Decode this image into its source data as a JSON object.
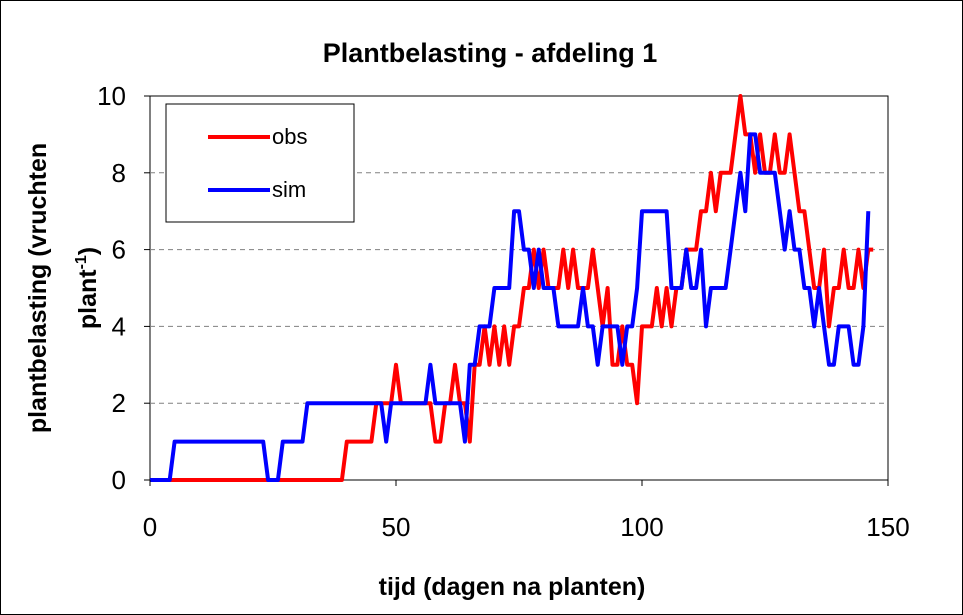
{
  "chart_data": {
    "type": "line",
    "title": "Plantbelasting - afdeling 1",
    "xlabel": "tijd (dagen na planten)",
    "ylabel_line1": "plantbelasting (vruchten",
    "ylabel_line2": "plant",
    "ylabel_sup": "-1",
    "ylabel_close": ")",
    "xlim": [
      0,
      150
    ],
    "ylim": [
      0,
      10
    ],
    "xticks": [
      0,
      50,
      100,
      150
    ],
    "yticks": [
      0,
      2,
      4,
      6,
      8,
      10
    ],
    "grid": "horizontal dashed",
    "legend_position": "top-left",
    "series": [
      {
        "name": "obs",
        "color": "#ff0000",
        "points": [
          [
            0,
            0
          ],
          [
            39,
            0
          ],
          [
            40,
            1
          ],
          [
            43,
            1
          ],
          [
            44,
            1
          ],
          [
            45,
            1
          ],
          [
            46,
            2
          ],
          [
            48,
            2
          ],
          [
            49,
            2
          ],
          [
            50,
            3
          ],
          [
            51,
            2
          ],
          [
            53,
            2
          ],
          [
            55,
            2
          ],
          [
            57,
            2
          ],
          [
            58,
            1
          ],
          [
            59,
            1
          ],
          [
            60,
            2
          ],
          [
            61,
            2
          ],
          [
            62,
            3
          ],
          [
            63,
            2
          ],
          [
            64,
            2
          ],
          [
            65,
            1
          ],
          [
            66,
            3
          ],
          [
            67,
            3
          ],
          [
            68,
            4
          ],
          [
            69,
            3
          ],
          [
            70,
            4
          ],
          [
            71,
            3
          ],
          [
            72,
            4
          ],
          [
            73,
            3
          ],
          [
            74,
            4
          ],
          [
            75,
            4
          ],
          [
            76,
            5
          ],
          [
            77,
            5
          ],
          [
            78,
            6
          ],
          [
            79,
            5
          ],
          [
            80,
            6
          ],
          [
            81,
            5
          ],
          [
            82,
            5
          ],
          [
            83,
            5
          ],
          [
            84,
            6
          ],
          [
            85,
            5
          ],
          [
            86,
            6
          ],
          [
            87,
            5
          ],
          [
            88,
            5
          ],
          [
            89,
            5
          ],
          [
            90,
            6
          ],
          [
            91,
            5
          ],
          [
            92,
            4
          ],
          [
            93,
            5
          ],
          [
            94,
            3
          ],
          [
            95,
            3
          ],
          [
            96,
            4
          ],
          [
            97,
            3
          ],
          [
            98,
            3
          ],
          [
            99,
            2
          ],
          [
            100,
            4
          ],
          [
            101,
            4
          ],
          [
            102,
            4
          ],
          [
            103,
            5
          ],
          [
            104,
            4
          ],
          [
            105,
            5
          ],
          [
            106,
            4
          ],
          [
            107,
            5
          ],
          [
            108,
            5
          ],
          [
            109,
            6
          ],
          [
            110,
            6
          ],
          [
            111,
            6
          ],
          [
            112,
            7
          ],
          [
            113,
            7
          ],
          [
            114,
            8
          ],
          [
            115,
            7
          ],
          [
            116,
            8
          ],
          [
            117,
            8
          ],
          [
            118,
            8
          ],
          [
            119,
            9
          ],
          [
            120,
            10
          ],
          [
            121,
            9
          ],
          [
            122,
            9
          ],
          [
            123,
            8
          ],
          [
            124,
            9
          ],
          [
            125,
            8
          ],
          [
            126,
            8
          ],
          [
            127,
            9
          ],
          [
            128,
            8
          ],
          [
            129,
            8
          ],
          [
            130,
            9
          ],
          [
            131,
            8
          ],
          [
            132,
            7
          ],
          [
            133,
            7
          ],
          [
            134,
            6
          ],
          [
            135,
            5
          ],
          [
            136,
            5
          ],
          [
            137,
            6
          ],
          [
            138,
            4
          ],
          [
            139,
            5
          ],
          [
            140,
            5
          ],
          [
            141,
            6
          ],
          [
            142,
            5
          ],
          [
            143,
            5
          ],
          [
            144,
            6
          ],
          [
            145,
            5
          ],
          [
            146,
            6
          ],
          [
            147,
            6
          ]
        ]
      },
      {
        "name": "sim",
        "color": "#0000ff",
        "points": [
          [
            0,
            0
          ],
          [
            4,
            0
          ],
          [
            5,
            1
          ],
          [
            9,
            1
          ],
          [
            12,
            1
          ],
          [
            16,
            1
          ],
          [
            20,
            1
          ],
          [
            23,
            1
          ],
          [
            24,
            0
          ],
          [
            25,
            0
          ],
          [
            26,
            0
          ],
          [
            27,
            1
          ],
          [
            28,
            1
          ],
          [
            31,
            1
          ],
          [
            32,
            2
          ],
          [
            36,
            2
          ],
          [
            40,
            2
          ],
          [
            44,
            2
          ],
          [
            45,
            2
          ],
          [
            46,
            2
          ],
          [
            47,
            2
          ],
          [
            48,
            1
          ],
          [
            49,
            2
          ],
          [
            50,
            2
          ],
          [
            54,
            2
          ],
          [
            56,
            2
          ],
          [
            57,
            3
          ],
          [
            58,
            2
          ],
          [
            60,
            2
          ],
          [
            62,
            2
          ],
          [
            63,
            2
          ],
          [
            64,
            1
          ],
          [
            65,
            3
          ],
          [
            66,
            3
          ],
          [
            67,
            4
          ],
          [
            68,
            4
          ],
          [
            69,
            4
          ],
          [
            70,
            5
          ],
          [
            71,
            5
          ],
          [
            72,
            5
          ],
          [
            73,
            5
          ],
          [
            74,
            7
          ],
          [
            75,
            7
          ],
          [
            76,
            6
          ],
          [
            77,
            6
          ],
          [
            78,
            5
          ],
          [
            79,
            6
          ],
          [
            80,
            5
          ],
          [
            81,
            5
          ],
          [
            82,
            5
          ],
          [
            83,
            4
          ],
          [
            84,
            4
          ],
          [
            85,
            4
          ],
          [
            86,
            4
          ],
          [
            87,
            4
          ],
          [
            88,
            5
          ],
          [
            89,
            4
          ],
          [
            90,
            4
          ],
          [
            91,
            3
          ],
          [
            92,
            4
          ],
          [
            93,
            4
          ],
          [
            94,
            4
          ],
          [
            95,
            4
          ],
          [
            96,
            3
          ],
          [
            97,
            4
          ],
          [
            98,
            4
          ],
          [
            99,
            5
          ],
          [
            100,
            7
          ],
          [
            101,
            7
          ],
          [
            102,
            7
          ],
          [
            103,
            7
          ],
          [
            104,
            7
          ],
          [
            105,
            7
          ],
          [
            106,
            5
          ],
          [
            107,
            5
          ],
          [
            108,
            5
          ],
          [
            109,
            6
          ],
          [
            110,
            5
          ],
          [
            111,
            5
          ],
          [
            112,
            6
          ],
          [
            113,
            4
          ],
          [
            114,
            5
          ],
          [
            115,
            5
          ],
          [
            116,
            5
          ],
          [
            117,
            5
          ],
          [
            118,
            6
          ],
          [
            119,
            7
          ],
          [
            120,
            8
          ],
          [
            121,
            7
          ],
          [
            122,
            9
          ],
          [
            123,
            9
          ],
          [
            124,
            8
          ],
          [
            125,
            8
          ],
          [
            126,
            8
          ],
          [
            127,
            8
          ],
          [
            128,
            7
          ],
          [
            129,
            6
          ],
          [
            130,
            7
          ],
          [
            131,
            6
          ],
          [
            132,
            6
          ],
          [
            133,
            5
          ],
          [
            134,
            5
          ],
          [
            135,
            4
          ],
          [
            136,
            5
          ],
          [
            137,
            4
          ],
          [
            138,
            3
          ],
          [
            139,
            3
          ],
          [
            140,
            4
          ],
          [
            141,
            4
          ],
          [
            142,
            4
          ],
          [
            143,
            3
          ],
          [
            144,
            3
          ],
          [
            145,
            4
          ],
          [
            146,
            7
          ]
        ]
      }
    ]
  }
}
